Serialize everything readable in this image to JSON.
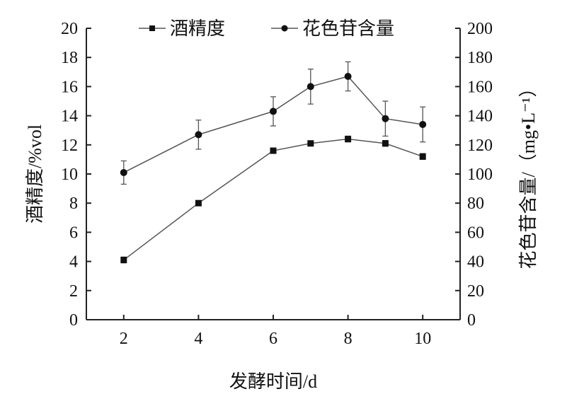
{
  "chart_data": {
    "type": "line",
    "title": "",
    "xlabel": "发酵时间/d",
    "ylabel": "酒精度/%vol",
    "y2label": "花色苷含量/（mg•L⁻¹）",
    "xlim": [
      1,
      11
    ],
    "ylim": [
      0,
      20
    ],
    "y2lim": [
      0,
      200
    ],
    "xticks": [
      "2",
      "4",
      "6",
      "8",
      "10"
    ],
    "yticks": [
      "0",
      "2",
      "4",
      "6",
      "8",
      "10",
      "12",
      "14",
      "16",
      "18",
      "20"
    ],
    "y2ticks": [
      "0",
      "20",
      "40",
      "60",
      "80",
      "100",
      "120",
      "140",
      "160",
      "180",
      "200"
    ],
    "grid": false,
    "legend_position": "top",
    "series": [
      {
        "name": "酒精度",
        "axis": "left",
        "marker": "square",
        "x": [
          2,
          4,
          6,
          7,
          8,
          9,
          10
        ],
        "values": [
          4.1,
          8.0,
          11.6,
          12.1,
          12.4,
          12.1,
          11.2
        ],
        "error": [
          0.2,
          0.15,
          0.1,
          0.1,
          0.2,
          0.2,
          0.2
        ]
      },
      {
        "name": "花色苷含量",
        "axis": "right",
        "marker": "circle",
        "x": [
          2,
          4,
          6,
          7,
          8,
          9,
          10
        ],
        "values": [
          101,
          127,
          143,
          160,
          167,
          138,
          134
        ],
        "error": [
          8,
          10,
          10,
          12,
          10,
          12,
          12
        ]
      }
    ]
  }
}
